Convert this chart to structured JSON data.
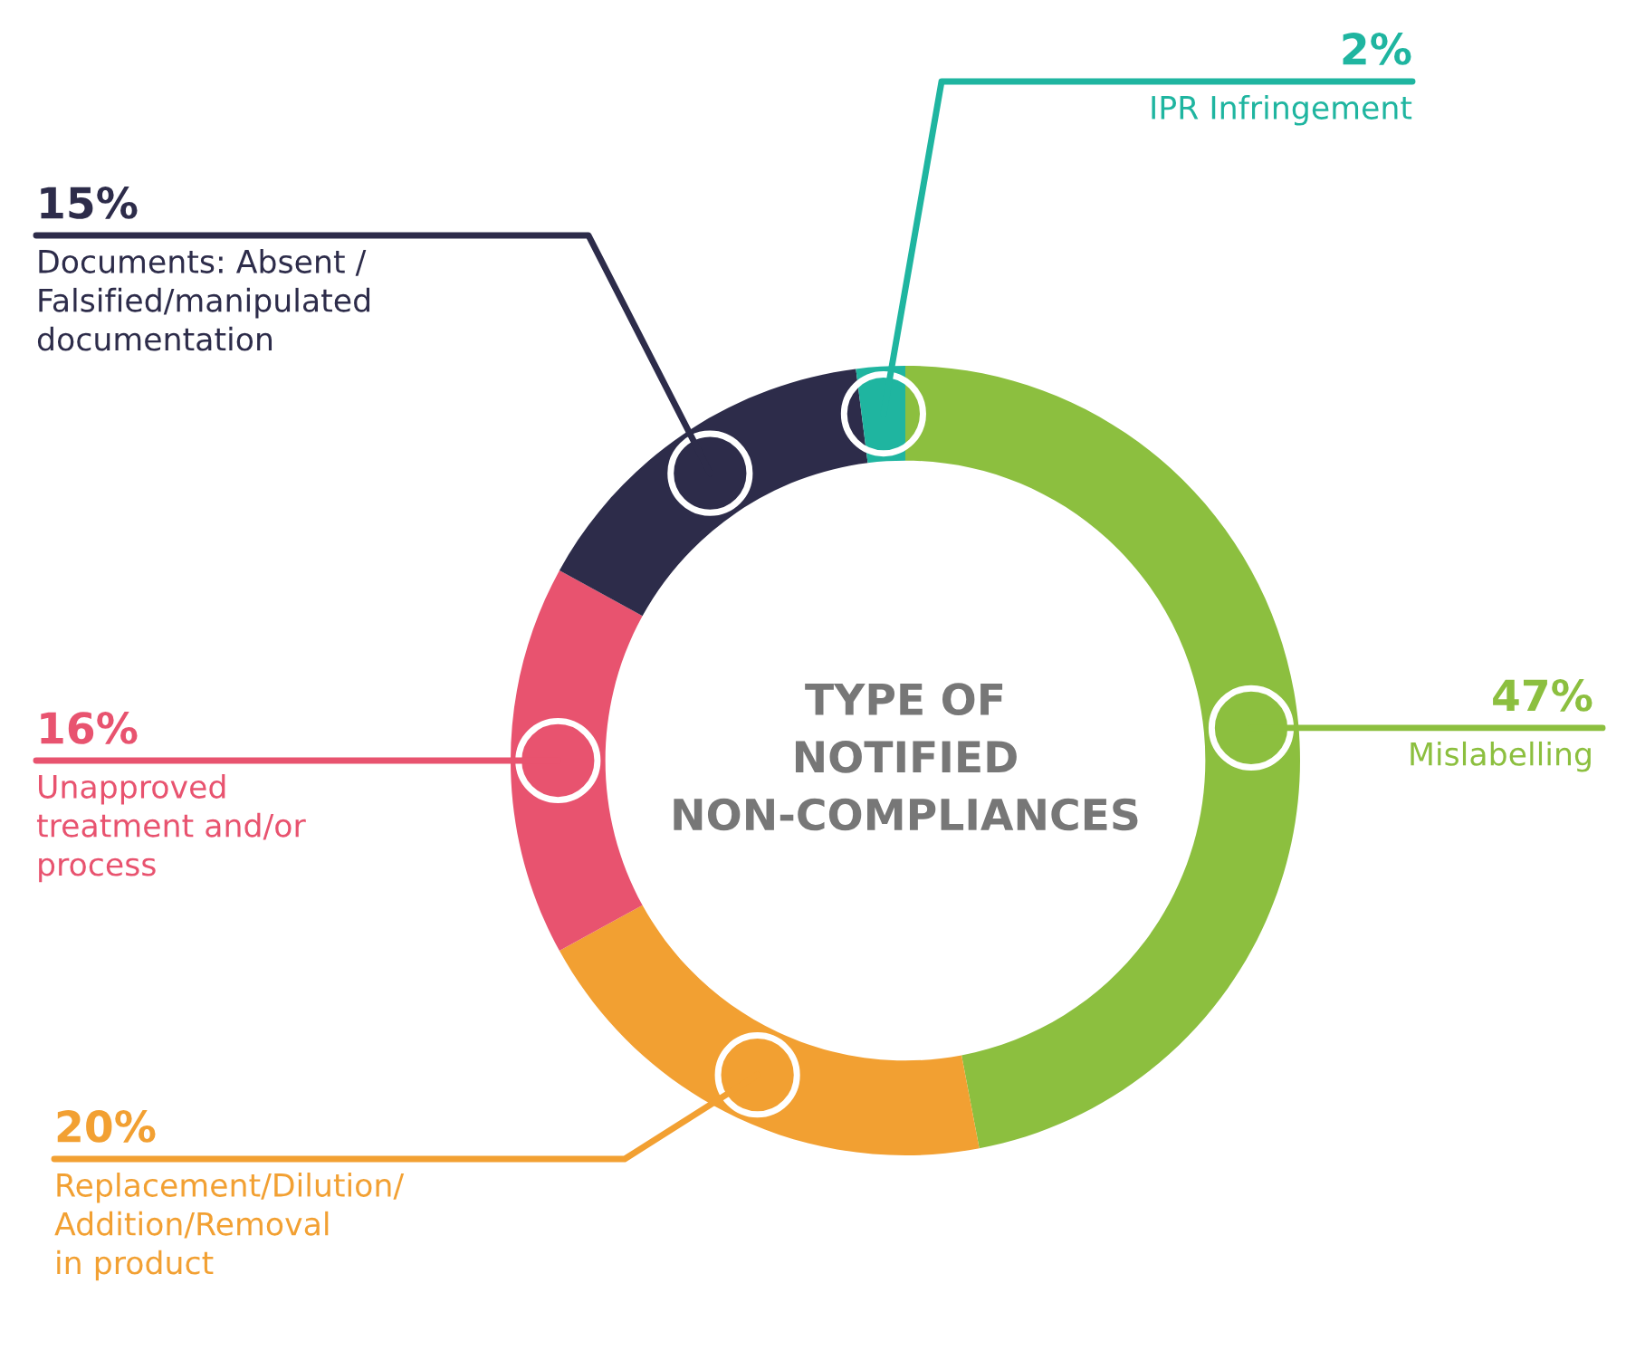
{
  "chart_data": {
    "type": "donut",
    "title": "TYPE OF\nNOTIFIED\nNON-COMPLIANCES",
    "categories": [
      "Mislabelling",
      "Replacement/Dilution/\nAddition/Removal\nin product",
      "Unapproved\ntreatment and/or\nprocess",
      "Documents: Absent /\nFalsified/manipulated\ndocumentation",
      "IPR Infringement"
    ],
    "values": [
      47,
      20,
      16,
      15,
      2
    ],
    "colors": [
      "#8cbf3f",
      "#f2a032",
      "#e8536f",
      "#2d2c4a",
      "#1fb5a0"
    ],
    "value_labels": [
      "47%",
      "20%",
      "16%",
      "15%",
      "2%"
    ]
  }
}
